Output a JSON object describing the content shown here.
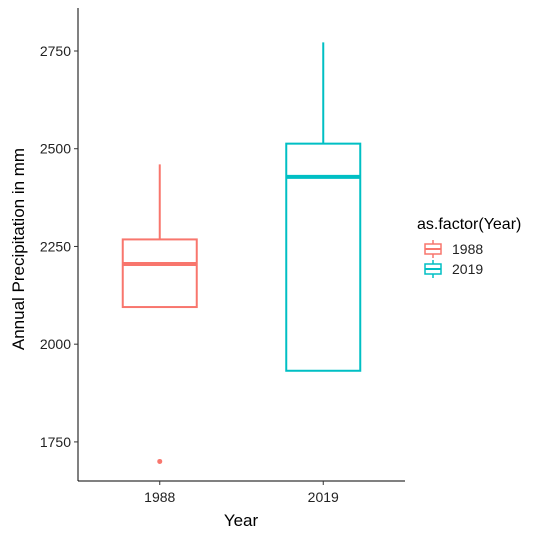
{
  "chart_data": {
    "type": "boxplot",
    "title": "",
    "xlabel": "Year",
    "ylabel": "Annual Precipitation in mm",
    "categories": [
      "1988",
      "2019"
    ],
    "ylim": [
      1650,
      2860
    ],
    "yticks": [
      1750,
      2000,
      2250,
      2500,
      2750
    ],
    "grid": false,
    "legend": {
      "title": "as.factor(Year)",
      "position": "right",
      "entries": [
        "1988",
        "2019"
      ]
    },
    "boxes": [
      {
        "name": "1988",
        "color": "#F8766D",
        "whisker_low": 2095,
        "q1": 2095,
        "median": 2205,
        "q3": 2268,
        "whisker_high": 2460,
        "outliers": [
          1700
        ]
      },
      {
        "name": "2019",
        "color": "#00BFC4",
        "whisker_low": 1932,
        "q1": 1932,
        "median": 2428,
        "q3": 2513,
        "whisker_high": 2772,
        "outliers": []
      }
    ]
  }
}
